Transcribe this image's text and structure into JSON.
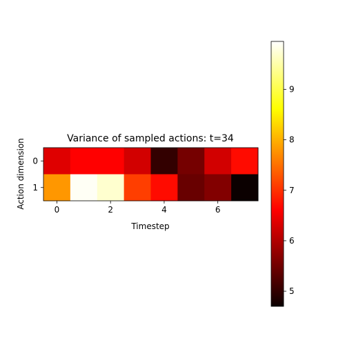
{
  "chart_data": {
    "type": "heatmap",
    "title": "Variance of sampled actions: t=34",
    "xlabel": "Timestep",
    "ylabel": "Action dimension",
    "x": [
      0,
      1,
      2,
      3,
      4,
      5,
      6,
      7
    ],
    "y": [
      0,
      1
    ],
    "x_ticks": [
      "0",
      "2",
      "4",
      "6"
    ],
    "y_ticks": [
      "0",
      "1"
    ],
    "values": [
      [
        6.3,
        6.6,
        6.6,
        6.2,
        5.0,
        5.5,
        6.2,
        6.7
      ],
      [
        7.8,
        9.9,
        9.7,
        7.1,
        6.7,
        5.4,
        5.6,
        4.7
      ]
    ],
    "colormap": "hot",
    "colorbar": {
      "vmin": 4.7,
      "vmax": 9.95,
      "ticks": [
        "5",
        "6",
        "7",
        "8",
        "9"
      ]
    },
    "grid": false
  }
}
